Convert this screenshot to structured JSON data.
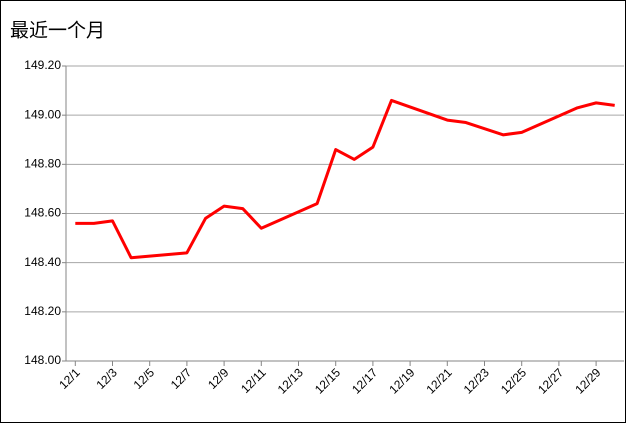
{
  "chart_data": {
    "type": "line",
    "title": "最近一个月",
    "x": [
      1,
      2,
      3,
      4,
      7,
      8,
      9,
      10,
      11,
      14,
      15,
      16,
      17,
      18,
      21,
      22,
      24,
      25,
      28,
      29,
      30
    ],
    "series": [
      {
        "color": "#ff0000",
        "values": [
          148.56,
          148.56,
          148.57,
          148.42,
          148.44,
          148.58,
          148.63,
          148.62,
          148.54,
          148.64,
          148.86,
          148.82,
          148.87,
          149.06,
          148.98,
          148.97,
          148.92,
          148.93,
          149.03,
          149.05,
          149.04
        ]
      }
    ],
    "xlim": [
      0.5,
      30.5
    ],
    "xticks": [
      {
        "value": 1,
        "label": "12/1"
      },
      {
        "value": 3,
        "label": "12/3"
      },
      {
        "value": 5,
        "label": "12/5"
      },
      {
        "value": 7,
        "label": "12/7"
      },
      {
        "value": 9,
        "label": "12/9"
      },
      {
        "value": 11,
        "label": "12/11"
      },
      {
        "value": 13,
        "label": "12/13"
      },
      {
        "value": 15,
        "label": "12/15"
      },
      {
        "value": 17,
        "label": "12/17"
      },
      {
        "value": 19,
        "label": "12/19"
      },
      {
        "value": 21,
        "label": "12/21"
      },
      {
        "value": 23,
        "label": "12/23"
      },
      {
        "value": 25,
        "label": "12/25"
      },
      {
        "value": 27,
        "label": "12/27"
      },
      {
        "value": 29,
        "label": "12/29"
      }
    ],
    "ylim": [
      148,
      149.2
    ],
    "yticks": [
      {
        "value": 148,
        "label": "148.00"
      },
      {
        "value": 148.2,
        "label": "148.20"
      },
      {
        "value": 148.4,
        "label": "148.40"
      },
      {
        "value": 148.6,
        "label": "148.60"
      },
      {
        "value": 148.8,
        "label": "148.80"
      },
      {
        "value": 149,
        "label": "149.00"
      },
      {
        "value": 149.2,
        "label": "149.20"
      }
    ],
    "grid": true
  }
}
